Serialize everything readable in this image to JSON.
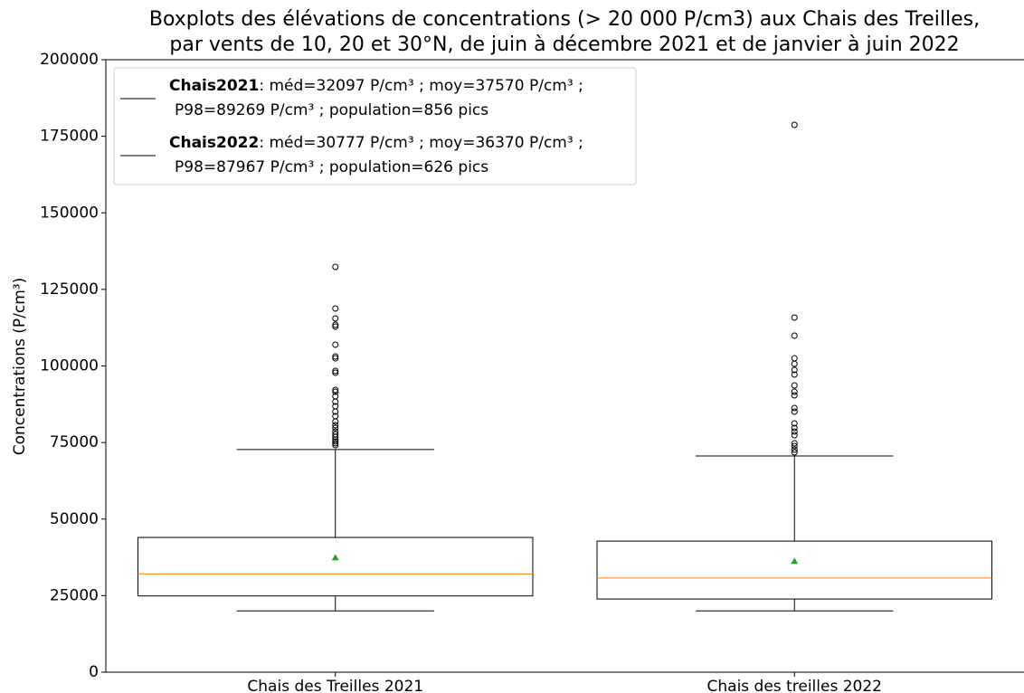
{
  "chart_data": {
    "type": "box",
    "title": [
      "Boxplots des élévations de concentrations (> 20 000 P/cm3) aux Chais des Treilles,",
      "par vents de 10, 20 et 30°N, de juin à décembre 2021 et de janvier à juin 2022"
    ],
    "y_label": "Concentrations (P/cm³)",
    "categories": [
      "Chais des Treilles 2021",
      "Chais des treilles 2022"
    ],
    "ylim": [
      0,
      200000
    ],
    "yticks": [
      0,
      25000,
      50000,
      75000,
      100000,
      125000,
      150000,
      175000,
      200000
    ],
    "box_color": "#000000",
    "median_color": "#ff7f0e",
    "mean_color": "#2ca02c",
    "flier_color": "#000000",
    "boxes": [
      {
        "whislo": 20000,
        "q1": 24900,
        "med": 32097,
        "q3": 44000,
        "whishi": 72700,
        "mean": 37570,
        "fliers": [
          132350,
          118760,
          115510,
          113440,
          112850,
          106940,
          103100,
          102510,
          98370,
          97780,
          92170,
          91580,
          90100,
          88330,
          86850,
          85080,
          83600,
          81830,
          80650,
          79760,
          78580,
          77690,
          76810,
          75920,
          75330,
          74740,
          74150
        ]
      },
      {
        "whislo": 20000,
        "q1": 23900,
        "med": 30777,
        "q3": 42800,
        "whishi": 70600,
        "mean": 36370,
        "fliers": [
          178730,
          115800,
          109900,
          102500,
          100700,
          98670,
          97200,
          93650,
          91580,
          90400,
          86260,
          85080,
          81240,
          79760,
          78580,
          77400,
          74740,
          73860,
          72670,
          71790
        ]
      }
    ],
    "legend": [
      {
        "name": "Chais2021",
        "color": "#000000",
        "lines": [
          ": méd=32097 P/cm³ ; moy=37570 P/cm³ ;",
          "P98=89269 P/cm³ ; population=856 pics"
        ]
      },
      {
        "name": "Chais2022",
        "color": "#000000",
        "lines": [
          ": méd=30777 P/cm³ ; moy=36370 P/cm³ ;",
          "P98=87967 P/cm³ ; population=626 pics"
        ]
      }
    ]
  }
}
